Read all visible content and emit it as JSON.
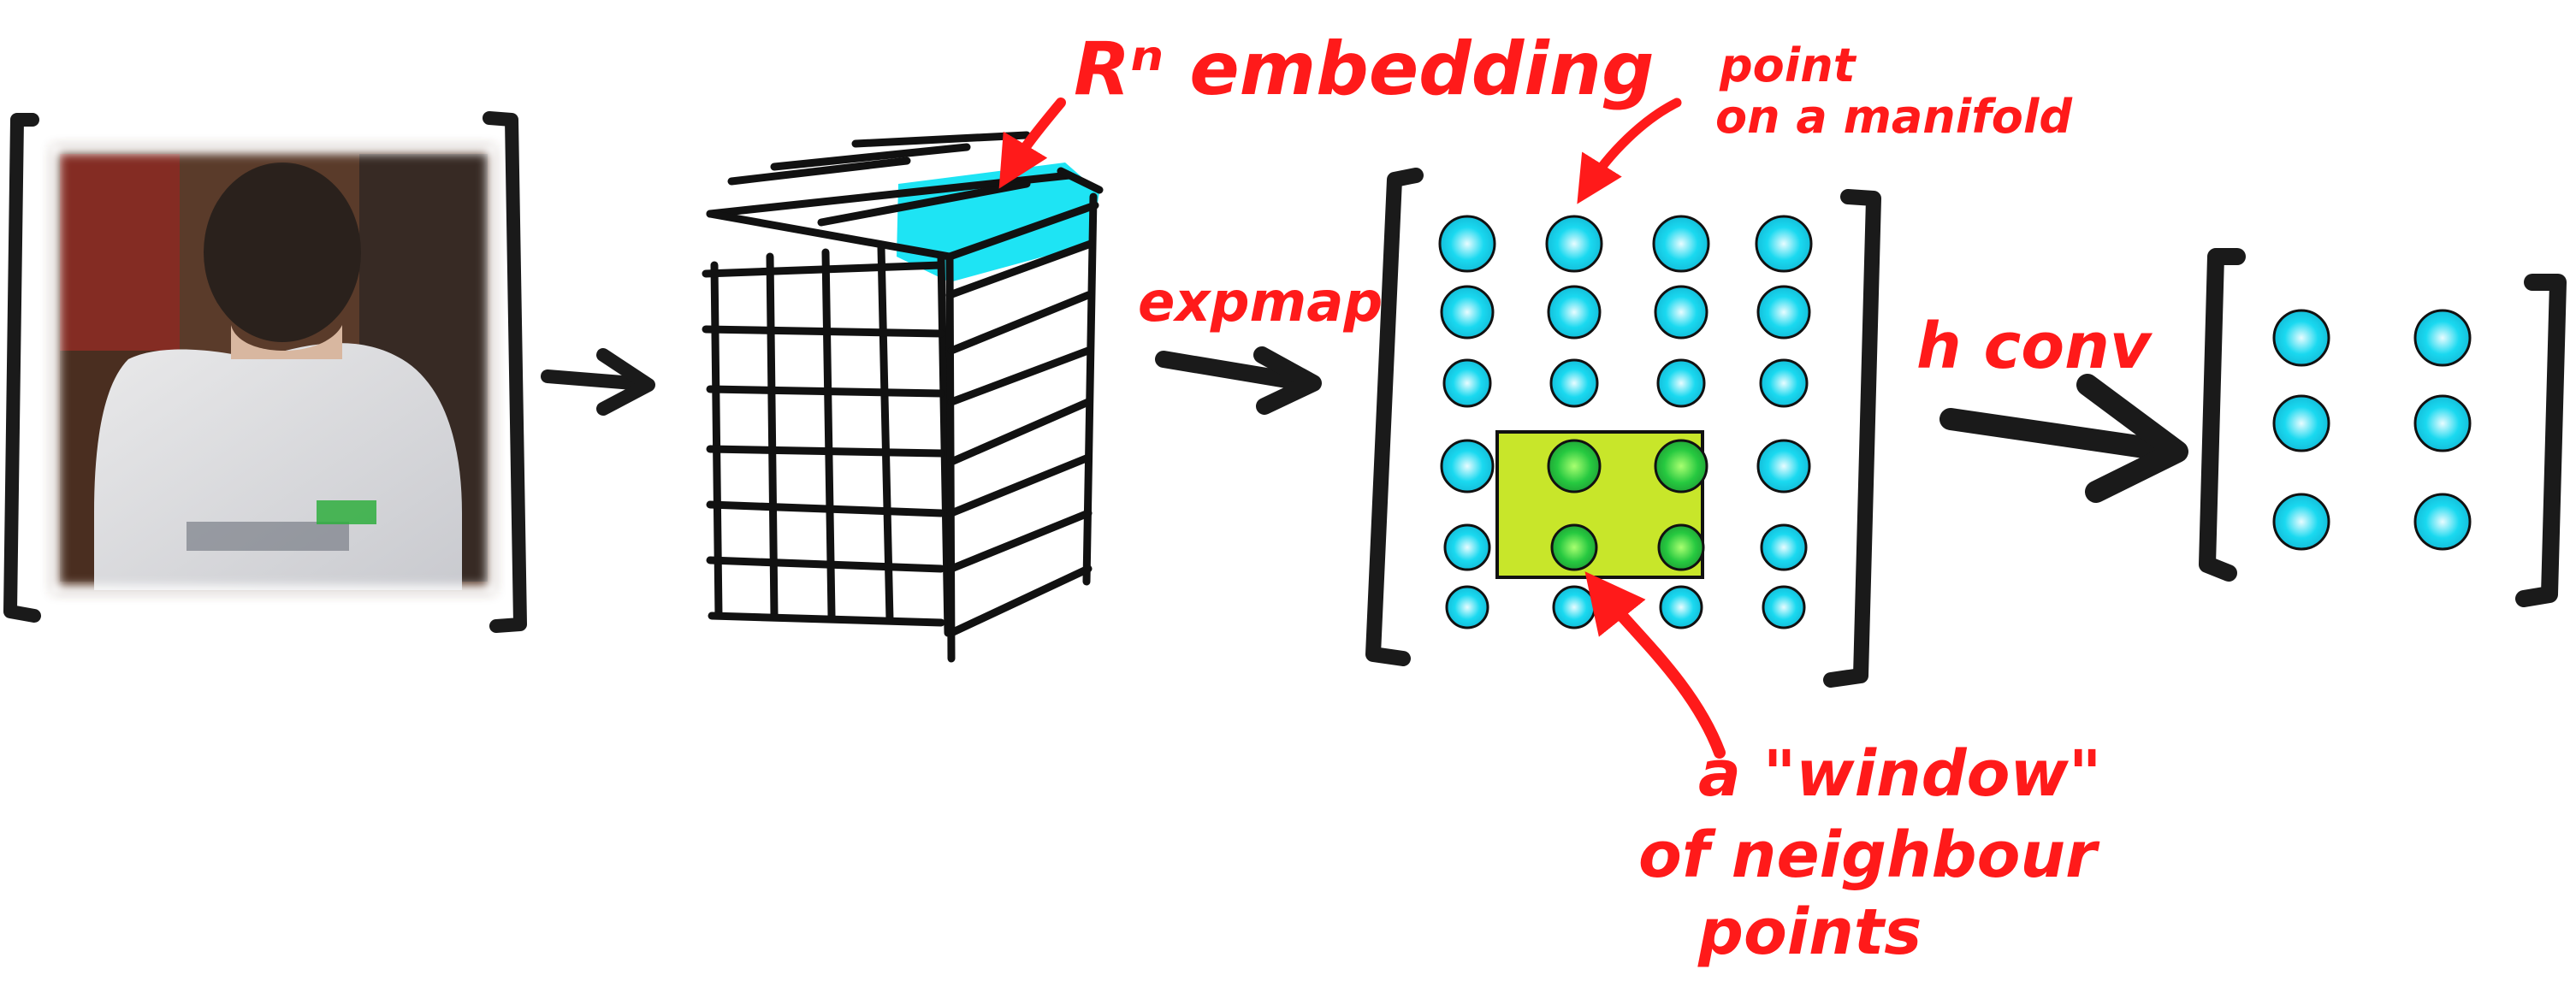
{
  "colors": {
    "ink": "#1a1a1a",
    "annotation": "#ff1a1a",
    "cyan": "#1ad9f0",
    "window_fill": "#c8e62a",
    "green_point": "#26c940"
  },
  "icons": {
    "photo": "photo-of-child-from-behind",
    "arrow": "right-arrow"
  },
  "labels": {
    "embedding": "Rⁿ embedding",
    "point_line1": "point",
    "point_line2": "on a manifold",
    "expmap": "expmap",
    "conv": "h conv",
    "window_line1": "a \"window\"",
    "window_line2": "of neighbour",
    "window_line3": "points"
  },
  "manifold_grid": {
    "rows": 6,
    "cols": 4,
    "window_rows": [
      3,
      4
    ],
    "window_cols": [
      1,
      2
    ]
  },
  "output_grid": {
    "rows": 3,
    "cols": 2
  }
}
